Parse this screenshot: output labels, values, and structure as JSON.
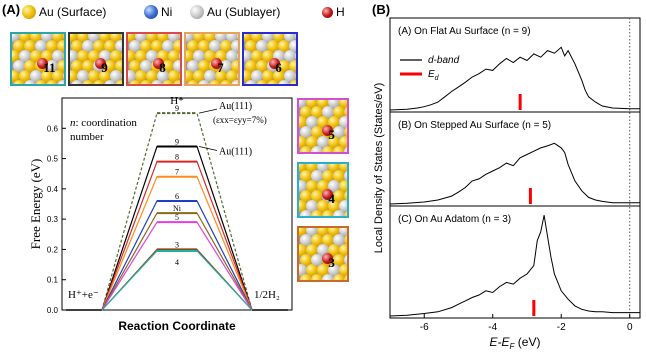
{
  "panel_a": {
    "label": "(A)",
    "legend": [
      {
        "kind": "au",
        "text": "Au (Surface)"
      },
      {
        "kind": "ni",
        "text": "Ni"
      },
      {
        "kind": "ausub",
        "text": "Au (Sublayer)"
      },
      {
        "kind": "h",
        "text": "H"
      }
    ],
    "tiles_top": [
      {
        "n": "11",
        "border": "#2aa6a6"
      },
      {
        "n": "9",
        "border": "#333333"
      },
      {
        "n": "8",
        "border": "#d94a4a"
      },
      {
        "n": "7",
        "border": "#e6a15a"
      },
      {
        "n": "6",
        "border": "#2a2ad0"
      }
    ],
    "tiles_side": [
      {
        "n": "5",
        "border": "#d44fd4"
      },
      {
        "n": "4",
        "border": "#2ab0c8"
      },
      {
        "n": "3",
        "border": "#c86a2a"
      }
    ],
    "annotation_n": "n",
    "annotation_rest": ": coordination number",
    "label_hstar": "H*",
    "label_au111_strained": "Au(111)",
    "label_strain": "(ε",
    "label_strain_full": "(εxx=εyy=7%)",
    "label_au111": "Au(111)",
    "label_left_state": "H⁺+e⁻",
    "label_right_state": "1/2H₂",
    "chart_data": {
      "type": "line",
      "title": "",
      "xlabel": "Reaction Coordinate",
      "ylabel": "Free Energy (eV)",
      "ylim": [
        0.0,
        0.7
      ],
      "yticks": [
        "0.0",
        "0.1",
        "0.2",
        "0.3",
        "0.4",
        "0.5",
        "0.6"
      ],
      "x_states": [
        "H⁺+e⁻",
        "H*",
        "1/2H₂"
      ],
      "series": [
        {
          "name": "9",
          "value": 0.65,
          "color": "#556b2f",
          "dashed": true
        },
        {
          "name": "9",
          "value": 0.54,
          "color": "#000000",
          "dashed": false
        },
        {
          "name": "8",
          "value": 0.49,
          "color": "#d62728",
          "dashed": false
        },
        {
          "name": "7",
          "value": 0.44,
          "color": "#ff8c1a",
          "dashed": false
        },
        {
          "name": "6",
          "value": 0.36,
          "color": "#1f3fbf",
          "dashed": false
        },
        {
          "name": "Ni",
          "value": 0.32,
          "color": "#8b6914",
          "dashed": false
        },
        {
          "name": "5",
          "value": 0.29,
          "color": "#e040e0",
          "dashed": false
        },
        {
          "name": "3",
          "value": 0.2,
          "color": "#8b4513",
          "dashed": false
        },
        {
          "name": "4",
          "value": 0.195,
          "color": "#20b2aa",
          "dashed": false
        }
      ]
    }
  },
  "panel_b": {
    "label": "(B)",
    "xlabel": "E-E",
    "xlabel_sub": "F",
    "xlabel_unit": " (eV)",
    "ylabel": "Local Density of States (States/eV)",
    "xticks": [
      "-6",
      "-4",
      "-2",
      "0"
    ],
    "legend_dband": "d-band",
    "legend_ed": "E",
    "legend_ed_sub": "d",
    "chart_data": {
      "type": "line",
      "xlabel": "E-E_F (eV)",
      "ylabel": "Local Density of States (States/eV)",
      "xlim": [
        -7,
        0.3
      ],
      "subplots": [
        {
          "title": "(A) On Flat Au Surface (n = 9)",
          "ed": -3.2,
          "x": [
            -7.0,
            -6.5,
            -6.2,
            -6.0,
            -5.8,
            -5.6,
            -5.4,
            -5.2,
            -5.0,
            -4.8,
            -4.6,
            -4.4,
            -4.2,
            -4.0,
            -3.8,
            -3.6,
            -3.4,
            -3.2,
            -3.0,
            -2.8,
            -2.6,
            -2.4,
            -2.2,
            -2.0,
            -1.9,
            -1.8,
            -1.6,
            -1.4,
            -1.3,
            -1.2,
            -1.0,
            -0.8,
            -0.5,
            0.0,
            0.3
          ],
          "y": [
            0.0,
            0.01,
            0.03,
            0.05,
            0.08,
            0.12,
            0.2,
            0.28,
            0.35,
            0.42,
            0.5,
            0.55,
            0.62,
            0.6,
            0.7,
            0.78,
            0.72,
            0.8,
            0.75,
            0.85,
            0.8,
            0.9,
            0.86,
            0.95,
            0.82,
            0.9,
            0.7,
            0.45,
            0.3,
            0.2,
            0.12,
            0.06,
            0.03,
            0.02,
            0.02
          ]
        },
        {
          "title": "(B) On Stepped Au Surface (n = 5)",
          "ed": -2.9,
          "x": [
            -7.0,
            -6.5,
            -6.0,
            -5.6,
            -5.2,
            -5.0,
            -4.8,
            -4.6,
            -4.4,
            -4.2,
            -4.0,
            -3.8,
            -3.6,
            -3.4,
            -3.2,
            -3.0,
            -2.8,
            -2.6,
            -2.4,
            -2.2,
            -2.0,
            -1.9,
            -1.8,
            -1.6,
            -1.4,
            -1.2,
            -1.0,
            -0.8,
            -0.5,
            0.0,
            0.3
          ],
          "y": [
            0.0,
            0.01,
            0.03,
            0.06,
            0.12,
            0.18,
            0.25,
            0.35,
            0.38,
            0.45,
            0.5,
            0.55,
            0.62,
            0.58,
            0.7,
            0.75,
            0.8,
            0.85,
            0.88,
            0.92,
            0.85,
            0.78,
            0.6,
            0.35,
            0.2,
            0.1,
            0.06,
            0.04,
            0.02,
            0.02,
            0.02
          ]
        },
        {
          "title": "(C) On Au Adatom (n = 3)",
          "ed": -2.8,
          "x": [
            -7.0,
            -6.5,
            -6.0,
            -5.6,
            -5.2,
            -5.0,
            -4.8,
            -4.6,
            -4.4,
            -4.2,
            -4.0,
            -3.8,
            -3.6,
            -3.4,
            -3.2,
            -3.0,
            -2.8,
            -2.7,
            -2.6,
            -2.5,
            -2.4,
            -2.3,
            -2.2,
            -2.0,
            -1.8,
            -1.6,
            -1.4,
            -1.2,
            -1.0,
            -0.8,
            -0.5,
            0.0,
            0.3
          ],
          "y": [
            0.0,
            0.01,
            0.03,
            0.05,
            0.1,
            0.14,
            0.18,
            0.22,
            0.25,
            0.3,
            0.28,
            0.35,
            0.4,
            0.38,
            0.45,
            0.5,
            0.6,
            0.9,
            1.0,
            1.2,
            0.95,
            0.7,
            0.5,
            0.3,
            0.2,
            0.12,
            0.08,
            0.06,
            0.05,
            0.05,
            0.04,
            0.04,
            0.04
          ]
        }
      ]
    }
  }
}
